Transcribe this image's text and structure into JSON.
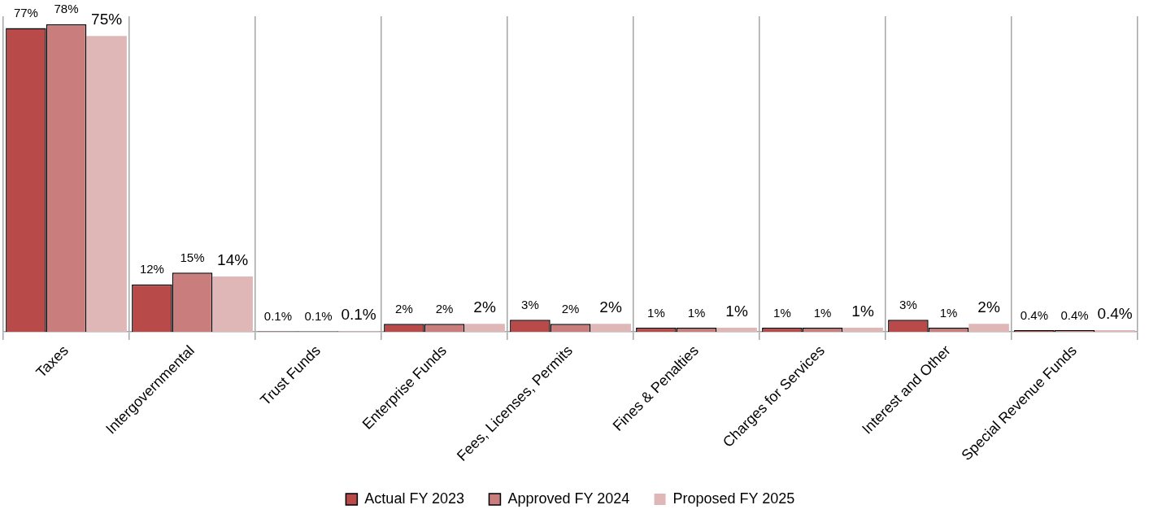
{
  "chart_data": {
    "type": "bar",
    "categories": [
      "Taxes",
      "Intergovernmental",
      "Trust Funds",
      "Enterprise Funds",
      "Fees, Licenses, Permits",
      "Fines & Penalties",
      "Charges for Services",
      "Interest and Other",
      "Special Revenue Funds"
    ],
    "series": [
      {
        "name": "Actual FY 2023",
        "color": "#b84a4a",
        "values": [
          77,
          12,
          0.1,
          2,
          3,
          1,
          1,
          3,
          0.4
        ],
        "value_labels": [
          "77%",
          "12%",
          "0.1%",
          "2%",
          "3%",
          "1%",
          "1%",
          "3%",
          "0.4%"
        ]
      },
      {
        "name": "Approved FY 2024",
        "color": "#c97d7d",
        "values": [
          78,
          15,
          0.1,
          2,
          2,
          1,
          1,
          1,
          0.4
        ],
        "value_labels": [
          "78%",
          "15%",
          "0.1%",
          "2%",
          "2%",
          "1%",
          "1%",
          "1%",
          "0.4%"
        ]
      },
      {
        "name": "Proposed FY 2025",
        "color": "#e0b7b7",
        "values": [
          75,
          14,
          0.1,
          2,
          2,
          1,
          1,
          2,
          0.4
        ],
        "value_labels": [
          "75%",
          "14%",
          "0.1%",
          "2%",
          "2%",
          "1%",
          "1%",
          "2%",
          "0.4%"
        ]
      }
    ],
    "grid": "x",
    "legend": "bottom",
    "tick_labels": "x"
  }
}
